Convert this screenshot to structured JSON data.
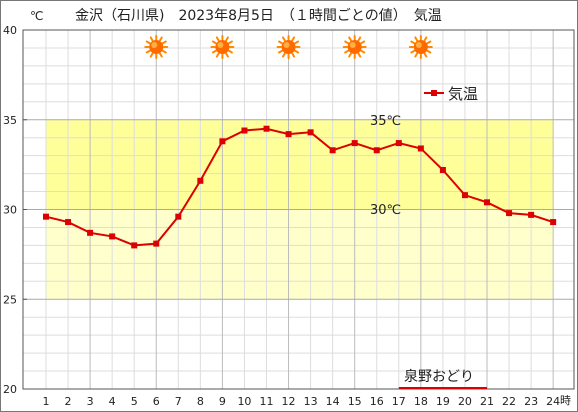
{
  "chart_data": {
    "type": "line",
    "title": "金沢（石川県)　2023年8月5日　（１時間ごとの値）　気温",
    "y_unit": "℃",
    "x_unit": "時",
    "x": [
      1,
      2,
      3,
      4,
      5,
      6,
      7,
      8,
      9,
      10,
      11,
      12,
      13,
      14,
      15,
      16,
      17,
      18,
      19,
      20,
      21,
      22,
      23,
      24
    ],
    "ylim": [
      20,
      40
    ],
    "y_ticks": [
      20,
      25,
      30,
      35,
      40
    ],
    "grid": true,
    "legend_position": "top-right",
    "series": [
      {
        "name": "気温",
        "color": "#dd0000",
        "values": [
          29.6,
          29.3,
          28.7,
          28.5,
          28.0,
          28.1,
          29.6,
          31.6,
          33.8,
          34.4,
          34.5,
          34.2,
          34.3,
          33.3,
          33.7,
          33.3,
          33.7,
          33.4,
          32.2,
          30.8,
          30.4,
          29.8,
          29.7,
          29.3
        ]
      }
    ],
    "bands": [
      {
        "from": 25,
        "to": 30,
        "color": "#ffffcc"
      },
      {
        "from": 30,
        "to": 35,
        "color": "#ffff99"
      }
    ],
    "annotations": {
      "line_35_label": "35℃",
      "line_30_label": "30℃",
      "event_label": "泉野おどり",
      "event_from_hour": 17,
      "event_to_hour": 21
    },
    "weather_icons": [
      {
        "hour": 6,
        "icon": "sun-icon"
      },
      {
        "hour": 9,
        "icon": "sun-icon"
      },
      {
        "hour": 12,
        "icon": "sun-icon"
      },
      {
        "hour": 15,
        "icon": "sun-icon"
      },
      {
        "hour": 18,
        "icon": "sun-icon"
      }
    ]
  }
}
